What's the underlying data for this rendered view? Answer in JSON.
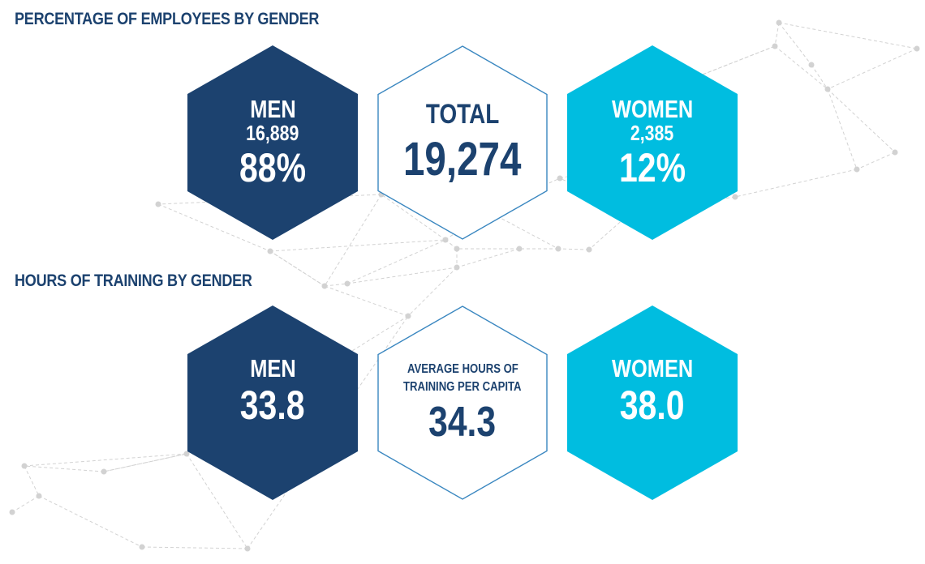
{
  "colors": {
    "navy": "#1c426f",
    "cyan": "#00bde0",
    "outline": "#3a87c0",
    "network": "#d2d2d2"
  },
  "employees": {
    "title": "PERCENTAGE OF EMPLOYEES BY GENDER",
    "men": {
      "label": "MEN",
      "count": "16,889",
      "percent": "88%"
    },
    "total": {
      "label": "TOTAL",
      "value": "19,274"
    },
    "women": {
      "label": "WOMEN",
      "count": "2,385",
      "percent": "12%"
    }
  },
  "training": {
    "title": "HOURS OF TRAINING BY GENDER",
    "men": {
      "label": "MEN",
      "value": "33.8"
    },
    "average": {
      "label_line1": "AVERAGE HOURS OF",
      "label_line2": "TRAINING PER CAPITA",
      "value": "34.3"
    },
    "women": {
      "label": "WOMEN",
      "value": "38.0"
    }
  }
}
